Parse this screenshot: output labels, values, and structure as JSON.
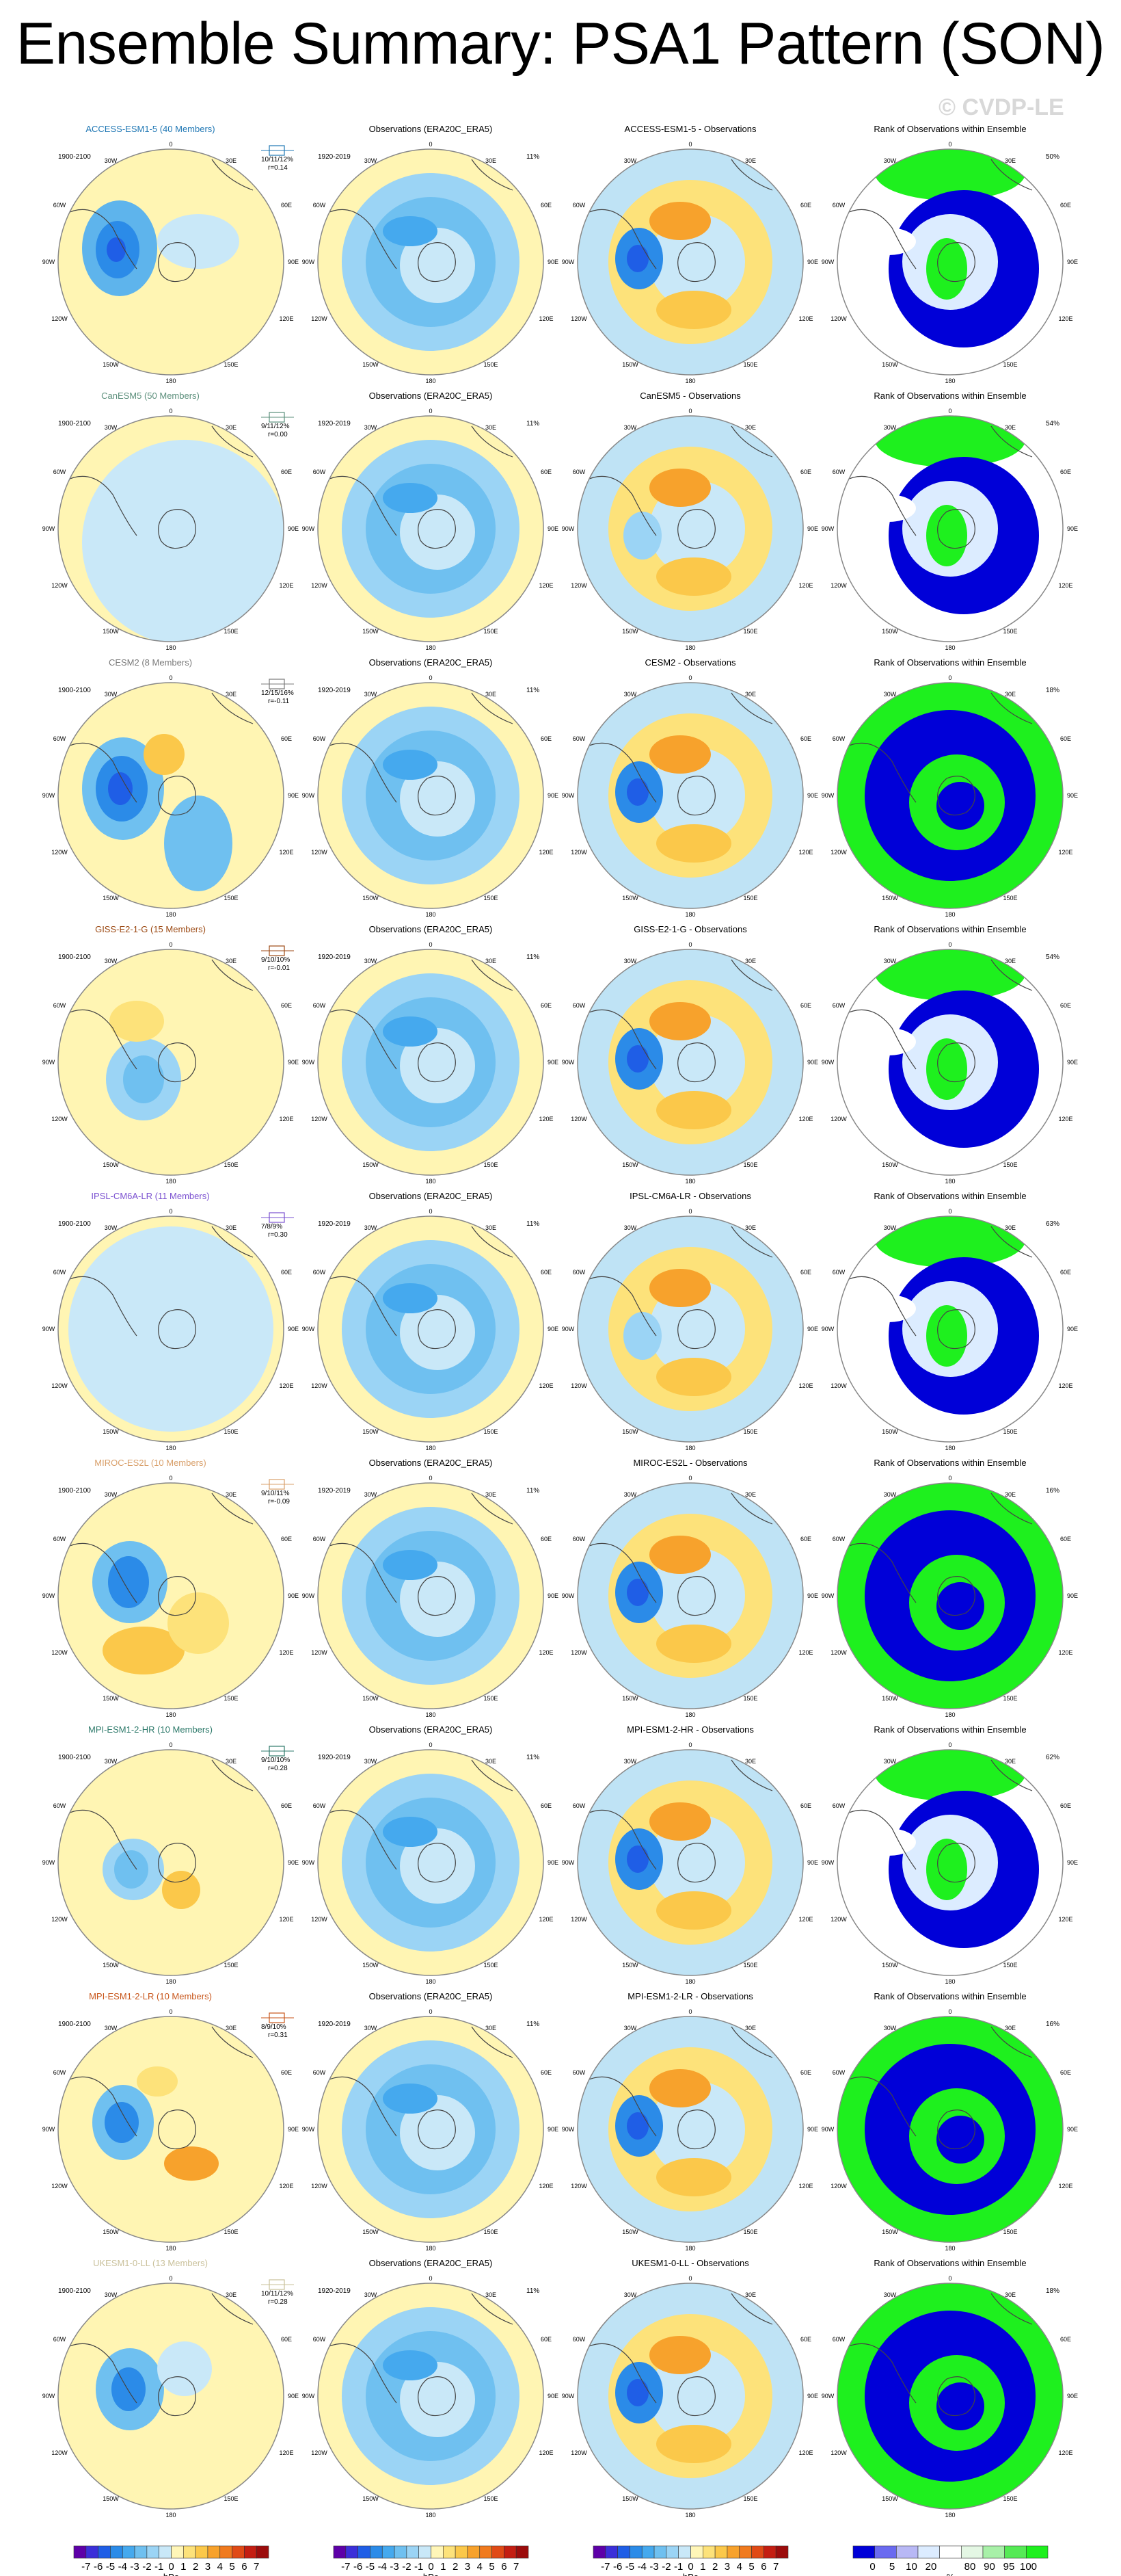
{
  "title": "Ensemble Summary: PSA1 Pattern (SON)",
  "watermark": "© CVDP-LE",
  "obs_period": "1920-2019",
  "obs_title": "Observations (ERA20C_ERA5)",
  "obs_percent": "11%",
  "rank_title": "Rank of Observations within Ensemble",
  "lon_labels": {
    "top": "0",
    "top_left": "30W",
    "top_right": "30E",
    "left_upper": "60W",
    "right_upper": "60E",
    "left": "90W",
    "right": "90E",
    "left_lower": "120W",
    "right_lower": "120E",
    "bottom_left": "150W",
    "bottom_right": "150E",
    "bottom": "180"
  },
  "colors": {
    "land_box_1": "#2c6e8f",
    "land_box_2": "#6f6f6f",
    "land_box_3": "#8b5a2b",
    "land_box_4": "#7b61c8",
    "fill_yellow": "#fff5b3",
    "fill_light_blue": "#bfe3f5",
    "rank_blue": "#0000d8",
    "rank_green": "#1ef01e",
    "rank_pale": "#dcecff"
  },
  "models": [
    {
      "name": "ACCESS-ESM1-5 (40 Members)",
      "short": "ACCESS-ESM1-5",
      "period": "1900-2100",
      "stats": "10/11/12%",
      "r": "r=0.14",
      "rank_pct": "50%",
      "color": "#1f77b4"
    },
    {
      "name": "CanESM5 (50 Members)",
      "short": "CanESM5",
      "period": "1900-2100",
      "stats": "9/11/12%",
      "r": "r=0.00",
      "rank_pct": "54%",
      "color": "#5b8f7b"
    },
    {
      "name": "CESM2 (8 Members)",
      "short": "CESM2",
      "period": "1900-2100",
      "stats": "12/15/16%",
      "r": "r=-0.11",
      "rank_pct": "18%",
      "color": "#7a7a7a"
    },
    {
      "name": "GISS-E2-1-G (15 Members)",
      "short": "GISS-E2-1-G",
      "period": "1900-2100",
      "stats": "9/10/10%",
      "r": "r=-0.01",
      "rank_pct": "54%",
      "color": "#9c4a14"
    },
    {
      "name": "IPSL-CM6A-LR (11 Members)",
      "short": "IPSL-CM6A-LR",
      "period": "1900-2100",
      "stats": "7/8/9%",
      "r": "r=0.30",
      "rank_pct": "63%",
      "color": "#7a50d0"
    },
    {
      "name": "MIROC-ES2L (10 Members)",
      "short": "MIROC-ES2L",
      "period": "1900-2100",
      "stats": "9/10/11%",
      "r": "r=-0.09",
      "rank_pct": "16%",
      "color": "#d9a06b"
    },
    {
      "name": "MPI-ESM1-2-HR (10 Members)",
      "short": "MPI-ESM1-2-HR",
      "period": "1900-2100",
      "stats": "9/10/10%",
      "r": "r=0.28",
      "rank_pct": "62%",
      "color": "#2e7a6b"
    },
    {
      "name": "MPI-ESM1-2-LR (10 Members)",
      "short": "MPI-ESM1-2-LR",
      "period": "1900-2100",
      "stats": "8/9/10%",
      "r": "r=0.31",
      "rank_pct": "16%",
      "color": "#c8561b"
    },
    {
      "name": "UKESM1-0-LL (13 Members)",
      "short": "UKESM1-0-LL",
      "period": "1900-2100",
      "stats": "10/11/12%",
      "r": "r=0.28",
      "rank_pct": "18%",
      "color": "#c9c09a"
    }
  ],
  "obs_minus_suffix": " - Observations",
  "colorbar_hpa": {
    "labels": [
      "-7",
      "-6",
      "-5",
      "-4",
      "-3",
      "-2",
      "-1",
      "0",
      "1",
      "2",
      "3",
      "4",
      "5",
      "6",
      "7"
    ],
    "units": "hPa",
    "colors": [
      "#5e00a8",
      "#3b2fd9",
      "#1f5ee6",
      "#2b8be8",
      "#45a9ee",
      "#6fc0f0",
      "#9bd4f5",
      "#c9e8f8",
      "#fff6b8",
      "#fde27a",
      "#fbc84a",
      "#f7a22c",
      "#f07a1e",
      "#e04a16",
      "#c41e12",
      "#9c0c0c"
    ]
  },
  "colorbar_pct": {
    "labels": [
      "0",
      "5",
      "10",
      "20",
      "",
      "80",
      "90",
      "95",
      "100"
    ],
    "units": "%",
    "colors": [
      "#0000d8",
      "#6a6af0",
      "#b8b8f5",
      "#dcecff",
      "#ffffff",
      "#e4f7e4",
      "#a8f0a8",
      "#55ea55",
      "#1ef01e"
    ]
  }
}
